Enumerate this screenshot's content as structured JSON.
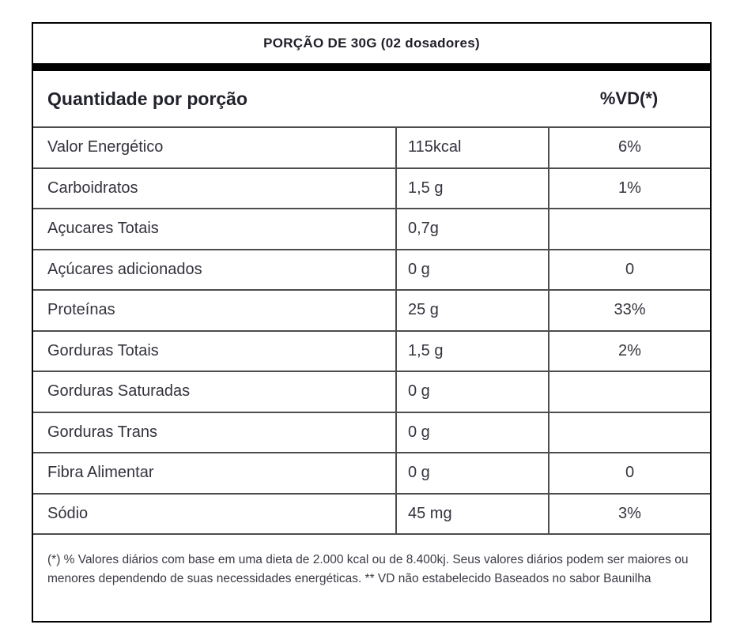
{
  "title": "PORÇÃO DE 30G (02 dosadores)",
  "header": {
    "quantity_label": "Quantidade por porção",
    "vd_label": "%VD(*)"
  },
  "rows": [
    {
      "nutrient": "Valor Energético",
      "amount": "115kcal",
      "vd": "6%"
    },
    {
      "nutrient": "Carboidratos",
      "amount": "1,5 g",
      "vd": "1%"
    },
    {
      "nutrient": "Açucares Totais",
      "amount": "0,7g",
      "vd": ""
    },
    {
      "nutrient": "Açúcares adicionados",
      "amount": "0 g",
      "vd": "0"
    },
    {
      "nutrient": "Proteínas",
      "amount": "25 g",
      "vd": "33%"
    },
    {
      "nutrient": "Gorduras Totais",
      "amount": "1,5 g",
      "vd": "2%"
    },
    {
      "nutrient": "Gorduras Saturadas",
      "amount": "0 g",
      "vd": ""
    },
    {
      "nutrient": "Gorduras Trans",
      "amount": "0 g",
      "vd": ""
    },
    {
      "nutrient": "Fibra Alimentar",
      "amount": "0 g",
      "vd": "0"
    },
    {
      "nutrient": "Sódio",
      "amount": "45 mg",
      "vd": "3%"
    }
  ],
  "footnote": "(*) % Valores diários com base em uma dieta de 2.000 kcal ou de 8.400kj. Seus valores diários podem ser maiores ou menores dependendo de suas necessidades energéticas. ** VD não estabelecido Baseados no sabor Baunilha",
  "colors": {
    "text": "#33333d",
    "grid_line": "#4d4d4d",
    "outer_border": "#000000",
    "divider_bar": "#000000",
    "background": "#ffffff"
  }
}
